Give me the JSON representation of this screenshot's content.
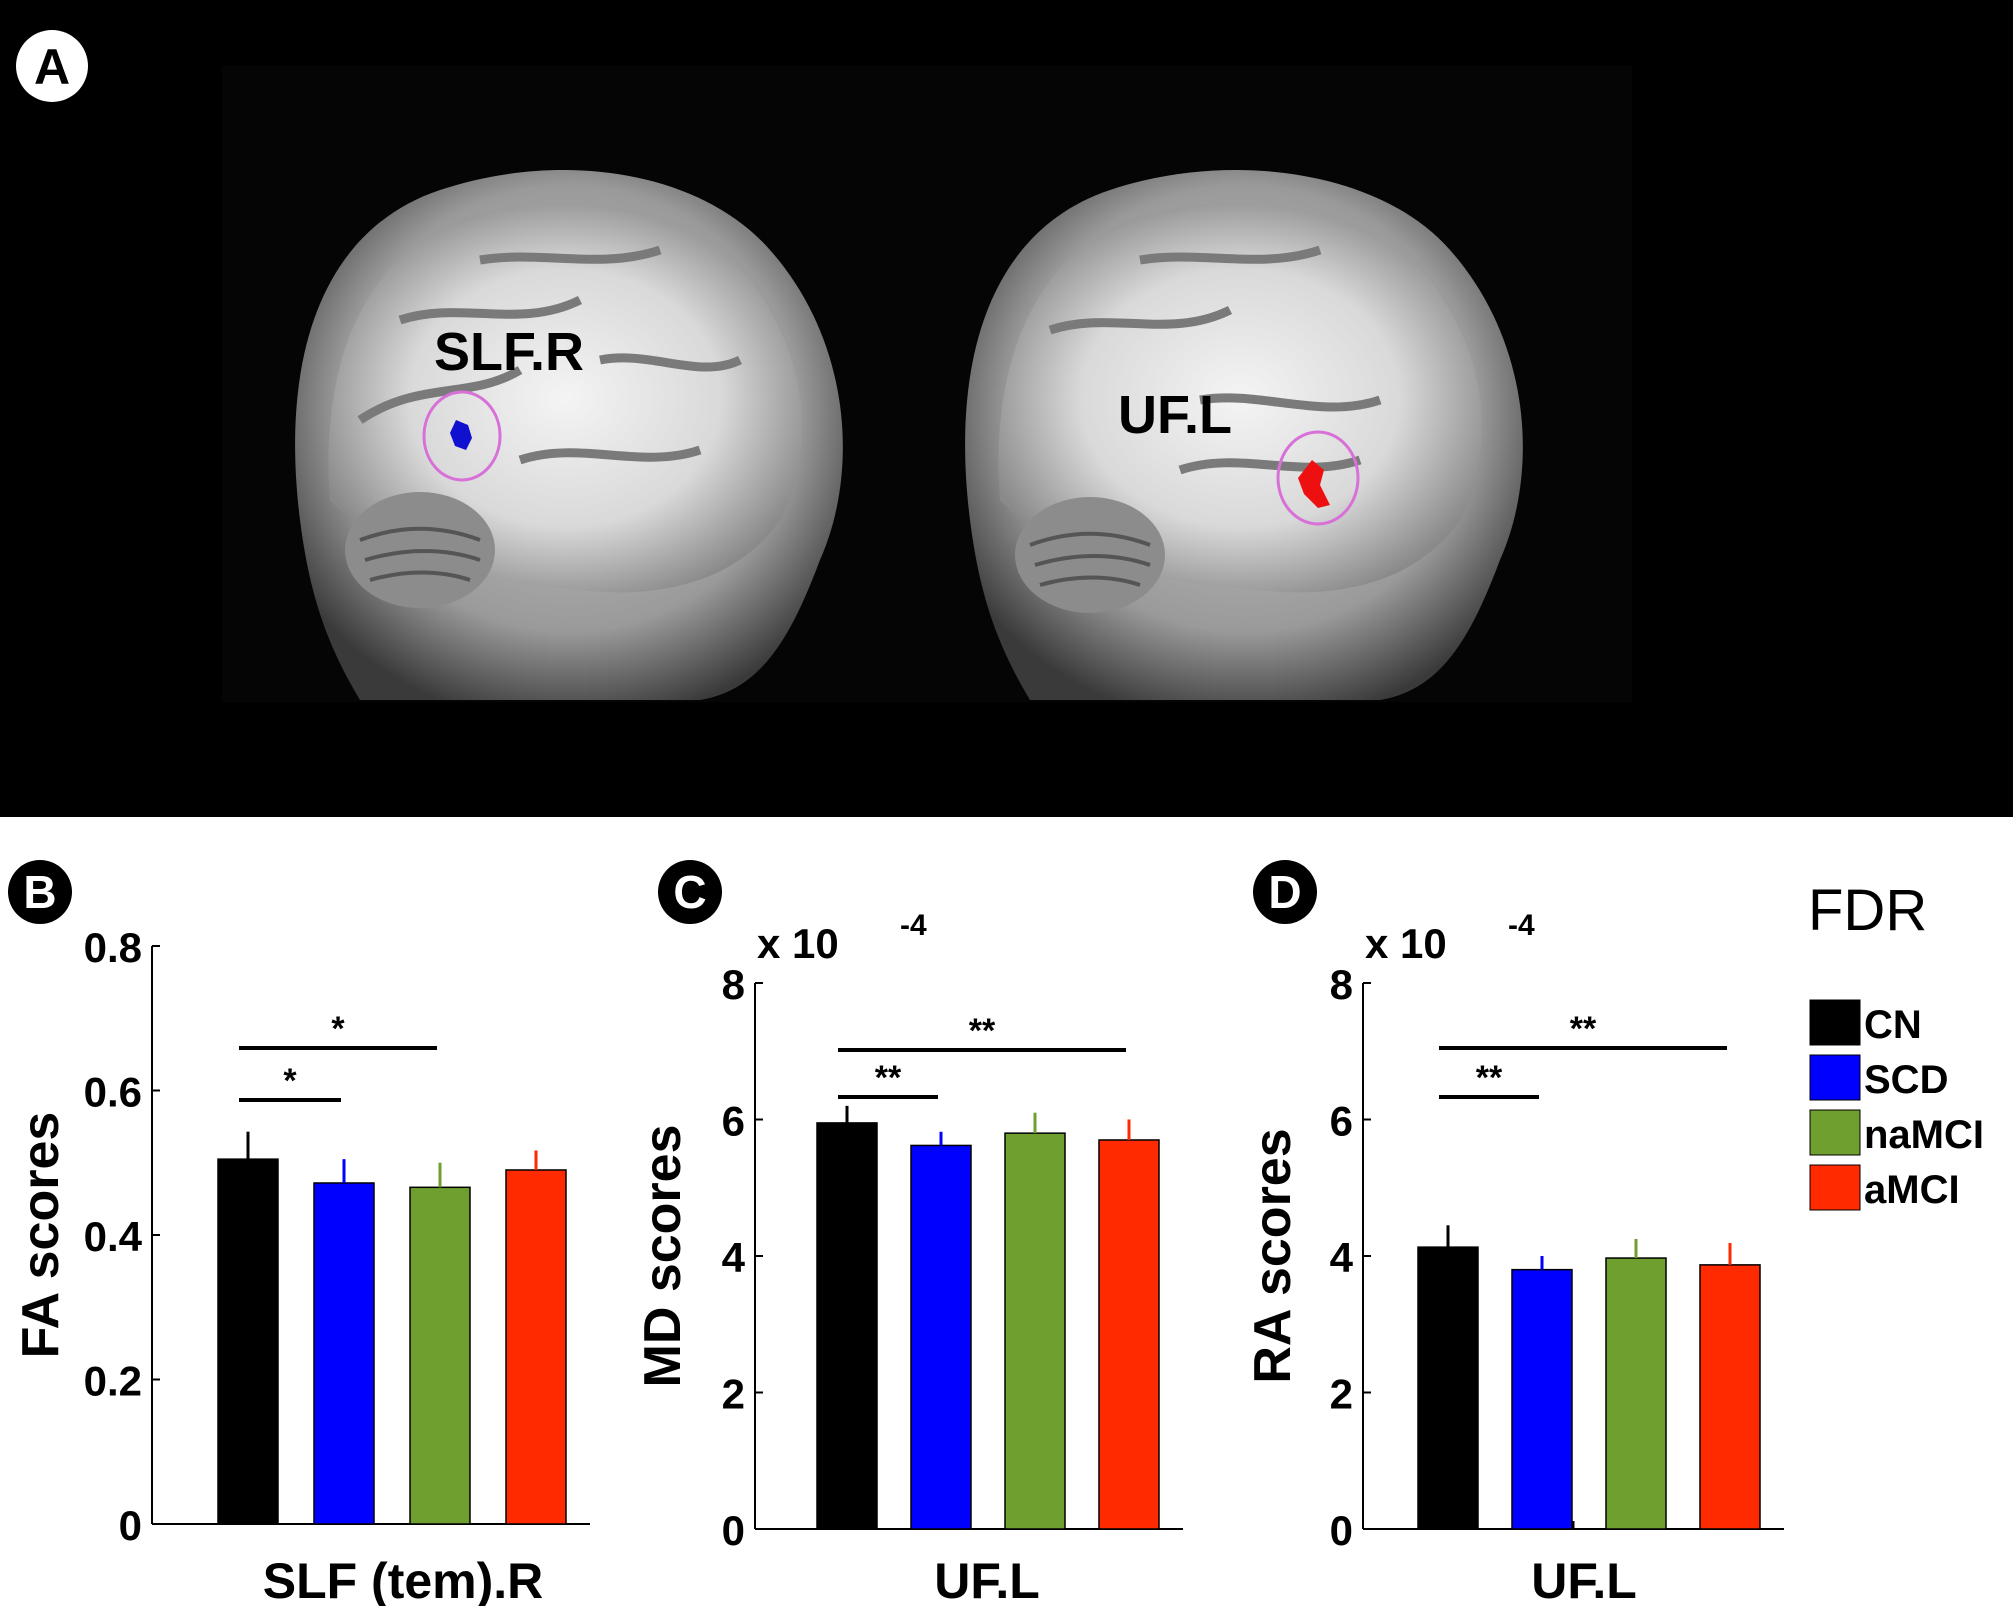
{
  "panel_a": {
    "letter": "A",
    "left_label": "SLF.R",
    "right_label": "UF.L"
  },
  "legend": {
    "title": "FDR",
    "items": [
      {
        "label": "CN",
        "color": "#000000"
      },
      {
        "label": "SCD",
        "color": "#0000ff"
      },
      {
        "label": "naMCI",
        "color": "#6f9f2f"
      },
      {
        "label": "aMCI",
        "color": "#ff2a00"
      }
    ]
  },
  "chart_data": [
    {
      "type": "bar",
      "panel": "B",
      "categories": [
        "CN",
        "SCD",
        "naMCI",
        "aMCI"
      ],
      "values": [
        0.505,
        0.472,
        0.466,
        0.49
      ],
      "errors": [
        0.038,
        0.033,
        0.034,
        0.027
      ],
      "xlabel": "SLF (tem).R",
      "ylabel": "FA scores",
      "ylim": [
        0,
        0.8
      ],
      "yticks": [
        0,
        0.2,
        0.4,
        0.6,
        0.8
      ],
      "ytick_labels": [
        "0",
        "0.2",
        "0.4",
        "0.6",
        "0.8"
      ],
      "scale_note": "",
      "significance": [
        {
          "from": "CN",
          "to": "naMCI",
          "mark": "*"
        },
        {
          "from": "CN",
          "to": "SCD",
          "mark": "*"
        }
      ]
    },
    {
      "type": "bar",
      "panel": "C",
      "categories": [
        "CN",
        "SCD",
        "naMCI",
        "aMCI"
      ],
      "values": [
        5.95,
        5.62,
        5.8,
        5.7
      ],
      "errors": [
        0.25,
        0.2,
        0.3,
        0.3
      ],
      "xlabel": "UF.L",
      "ylabel": "MD scores",
      "ylim": [
        0,
        8
      ],
      "yticks": [
        0,
        2,
        4,
        6,
        8
      ],
      "ytick_labels": [
        "0",
        "2",
        "4",
        "6",
        "8"
      ],
      "scale_note": "x 10",
      "scale_exp": "-4",
      "significance": [
        {
          "from": "CN",
          "to": "aMCI",
          "mark": "**"
        },
        {
          "from": "CN",
          "to": "SCD",
          "mark": "**"
        }
      ]
    },
    {
      "type": "bar",
      "panel": "D",
      "categories": [
        "CN",
        "SCD",
        "naMCI",
        "aMCI"
      ],
      "values": [
        4.13,
        3.8,
        3.97,
        3.87
      ],
      "errors": [
        0.32,
        0.2,
        0.28,
        0.32
      ],
      "xlabel": "UF.L",
      "ylabel": "RA scores",
      "ylim": [
        0,
        8
      ],
      "yticks": [
        0,
        2,
        4,
        6,
        8
      ],
      "ytick_labels": [
        "0",
        "2",
        "4",
        "6",
        "8"
      ],
      "scale_note": "x 10",
      "scale_exp": "-4",
      "significance": [
        {
          "from": "CN",
          "to": "aMCI",
          "mark": "**"
        },
        {
          "from": "CN",
          "to": "SCD",
          "mark": "**"
        }
      ]
    }
  ]
}
